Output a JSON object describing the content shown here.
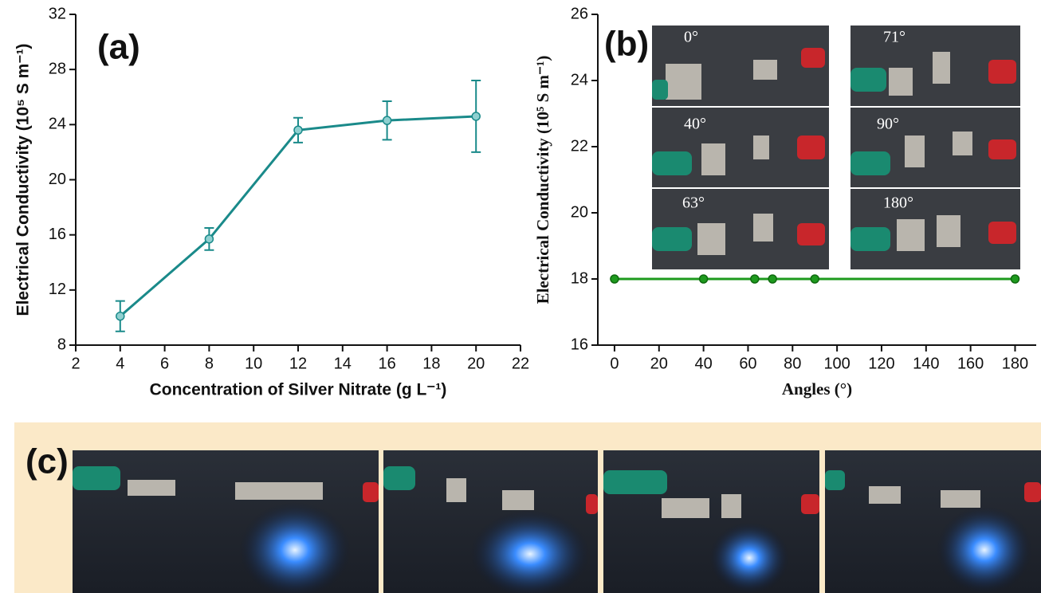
{
  "chart_data": [
    {
      "type": "line",
      "label": "(a)",
      "x_label": "Concentration of Silver Nitrate (g L⁻¹)",
      "y_label": "Electrical Conductivity (10⁵ S m⁻¹)",
      "x": [
        4,
        8,
        12,
        16,
        20
      ],
      "values": [
        10.1,
        15.7,
        23.6,
        24.3,
        24.6
      ],
      "errors": [
        1.1,
        0.8,
        0.9,
        1.4,
        2.6
      ],
      "color": "#1a8a8a",
      "xlim": [
        2,
        22
      ],
      "xticks": [
        2,
        4,
        6,
        8,
        10,
        12,
        14,
        16,
        18,
        20,
        22
      ],
      "ylim": [
        8,
        32
      ],
      "yticks": [
        8,
        12,
        16,
        20,
        24,
        28,
        32
      ]
    },
    {
      "type": "line",
      "label": "(b)",
      "x_label": "Angles (°)",
      "y_label": "Electrical Conductivity (10⁵ S m⁻¹)",
      "x": [
        0,
        40,
        63,
        71,
        90,
        180
      ],
      "values": [
        18,
        18,
        18,
        18,
        18,
        18
      ],
      "color": "#1e9a1e",
      "xlim": [
        -7.5,
        189.5
      ],
      "xticks": [
        0,
        20,
        40,
        60,
        80,
        100,
        120,
        140,
        160,
        180
      ],
      "ylim": [
        16,
        26
      ],
      "yticks": [
        16,
        18,
        20,
        22,
        24,
        26
      ],
      "inset_labels": [
        "0°",
        "40°",
        "63°",
        "71°",
        "90°",
        "180°"
      ]
    }
  ],
  "photo_panel": {
    "label": "(c)"
  }
}
